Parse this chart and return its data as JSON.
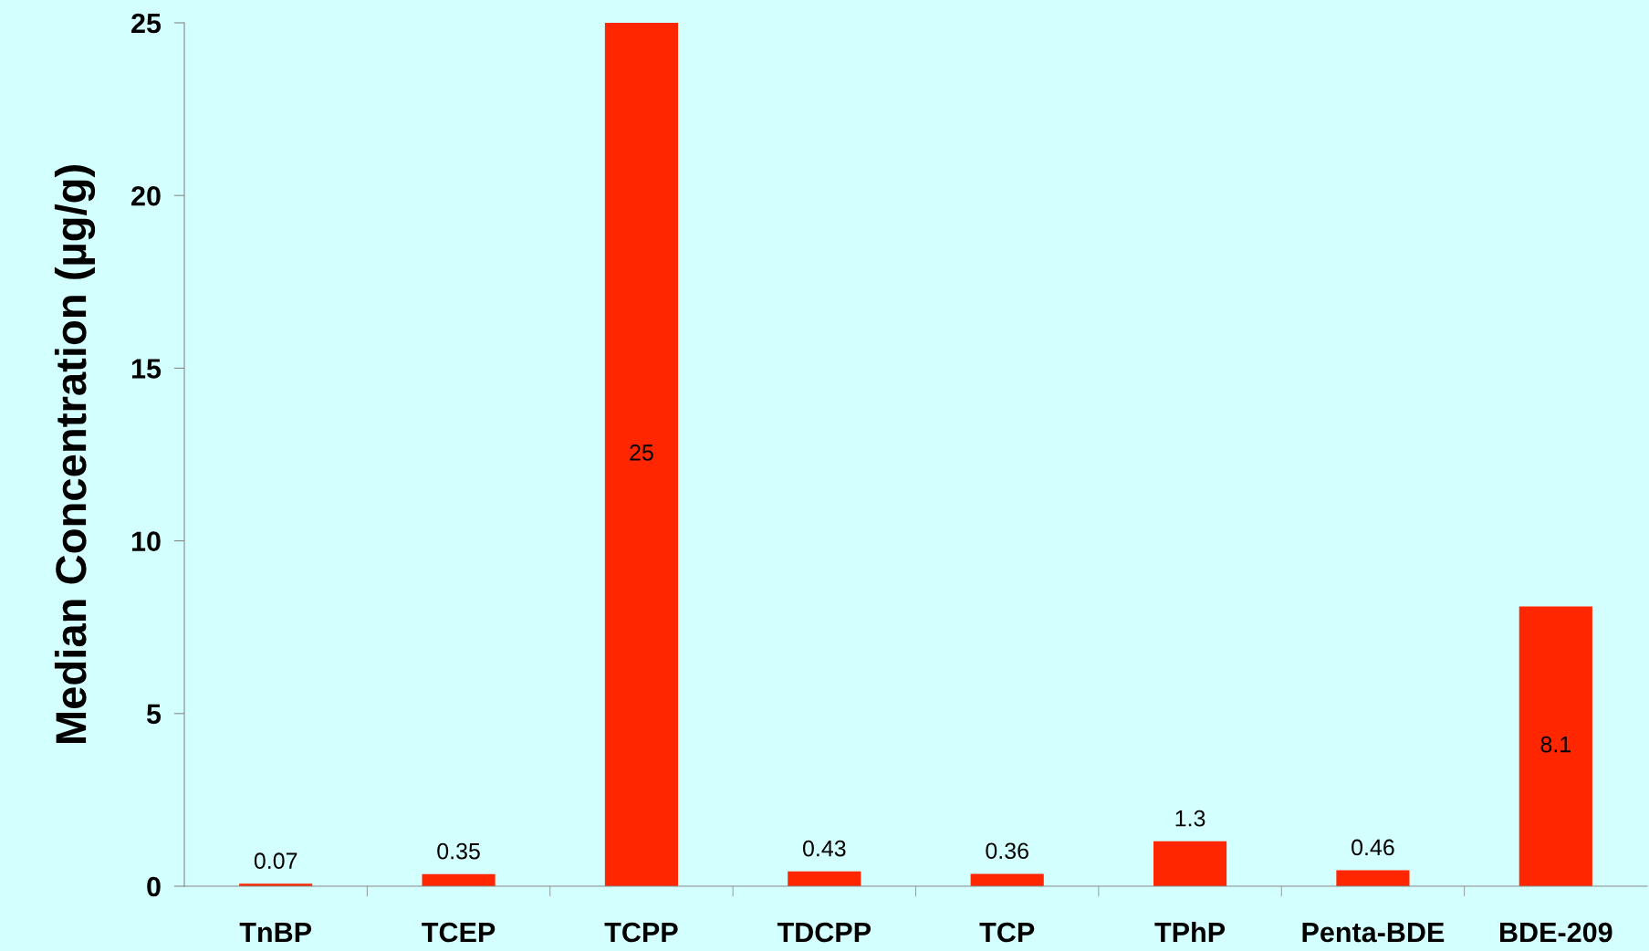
{
  "chart_data": {
    "type": "bar",
    "ylabel": "Median Concentration (µg/g)",
    "categories": [
      "TnBP",
      "TCEP",
      "TCPP",
      "TDCPP",
      "TCP",
      "TPhP",
      "Penta-BDE",
      "BDE-209"
    ],
    "values": [
      0.07,
      0.35,
      25,
      0.43,
      0.36,
      1.3,
      0.46,
      8.1
    ],
    "color": "#ff2600",
    "ylim": [
      0,
      25
    ],
    "yticks": [
      0,
      5,
      10,
      15,
      20,
      25
    ],
    "data_labels": true,
    "grid": false,
    "legend": false
  }
}
